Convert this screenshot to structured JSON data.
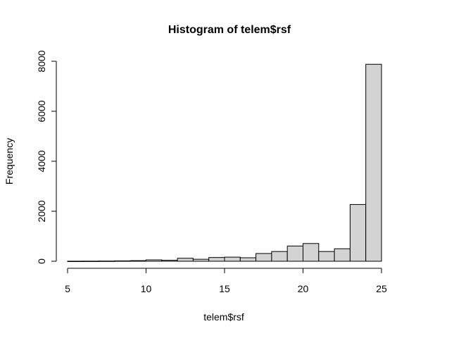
{
  "chart_data": {
    "type": "bar",
    "title": "Histogram of telem$rsf",
    "xlabel": "telem$rsf",
    "ylabel": "Frequency",
    "x_bin_start": 5,
    "x_bin_width": 1,
    "xlim": [
      5,
      25
    ],
    "ylim": [
      0,
      8000
    ],
    "x_ticks": [
      "5",
      "10",
      "15",
      "20",
      "25"
    ],
    "y_ticks": [
      "0",
      "2000",
      "4000",
      "6000",
      "8000"
    ],
    "bins": [
      "5-6",
      "6-7",
      "7-8",
      "8-9",
      "9-10",
      "10-11",
      "11-12",
      "12-13",
      "13-14",
      "14-15",
      "15-16",
      "16-17",
      "17-18",
      "18-19",
      "19-20",
      "20-21",
      "21-22",
      "22-23",
      "23-24",
      "24-25"
    ],
    "values": [
      3,
      5,
      8,
      15,
      25,
      55,
      40,
      120,
      80,
      150,
      165,
      140,
      310,
      390,
      610,
      710,
      390,
      500,
      2270,
      7880
    ],
    "bar_fill": "#d3d3d3",
    "bar_stroke": "#000000",
    "grid": false,
    "legend": "none"
  }
}
